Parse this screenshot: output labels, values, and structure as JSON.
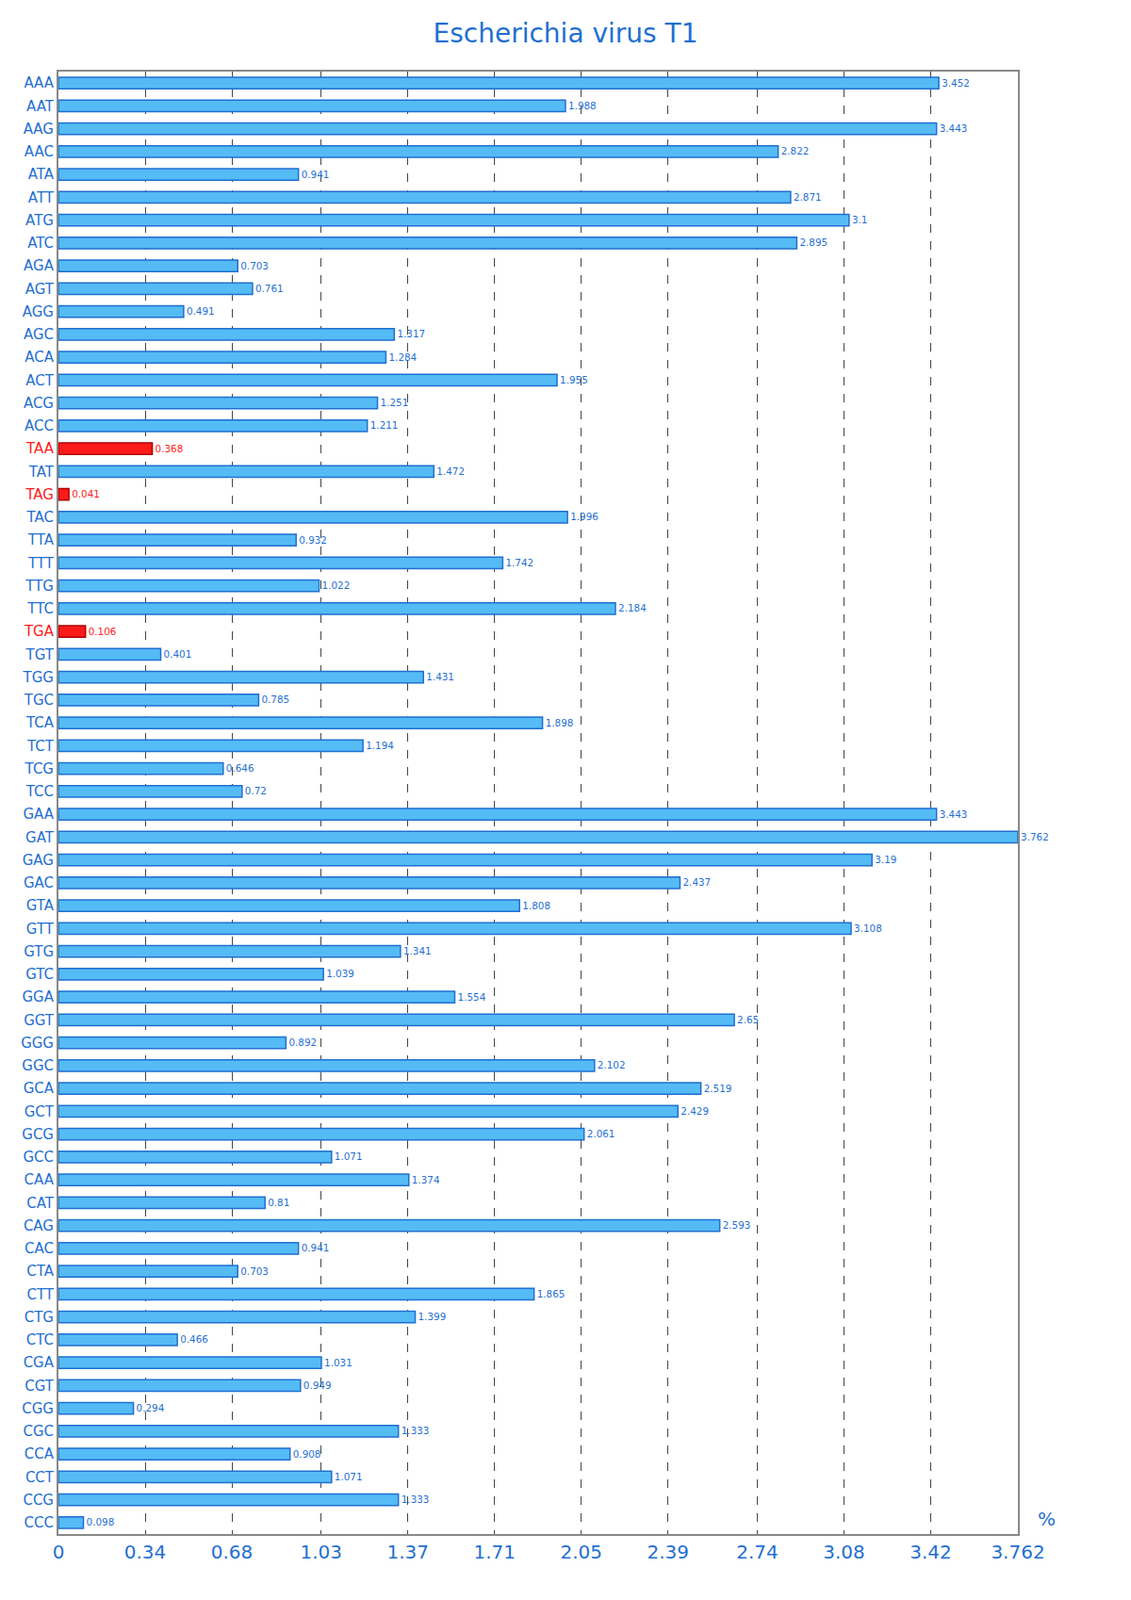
{
  "chart_data": {
    "type": "bar",
    "title": "Escherichia virus T1",
    "orientation": "horizontal",
    "x_label": "%",
    "categories": [
      "AAA",
      "AAT",
      "AAG",
      "AAC",
      "ATA",
      "ATT",
      "ATG",
      "ATC",
      "AGA",
      "AGT",
      "AGG",
      "AGC",
      "ACA",
      "ACT",
      "ACG",
      "ACC",
      "TAA",
      "TAT",
      "TAG",
      "TAC",
      "TTA",
      "TTT",
      "TTG",
      "TTC",
      "TGA",
      "TGT",
      "TGG",
      "TGC",
      "TCA",
      "TCT",
      "TCG",
      "TCC",
      "GAA",
      "GAT",
      "GAG",
      "GAC",
      "GTA",
      "GTT",
      "GTG",
      "GTC",
      "GGA",
      "GGT",
      "GGG",
      "GGC",
      "GCA",
      "GCT",
      "GCG",
      "GCC",
      "CAA",
      "CAT",
      "CAG",
      "CAC",
      "CTA",
      "CTT",
      "CTG",
      "CTC",
      "CGA",
      "CGT",
      "CGG",
      "CGC",
      "CCA",
      "CCT",
      "CCG",
      "CCC"
    ],
    "values": [
      3.452,
      1.988,
      3.443,
      2.822,
      0.941,
      2.871,
      3.1,
      2.895,
      0.703,
      0.761,
      0.491,
      1.317,
      1.284,
      1.955,
      1.251,
      1.211,
      0.368,
      1.472,
      0.041,
      1.996,
      0.932,
      1.742,
      1.022,
      2.184,
      0.106,
      0.401,
      1.431,
      0.785,
      1.898,
      1.194,
      0.646,
      0.72,
      3.443,
      3.762,
      3.19,
      2.437,
      1.808,
      3.108,
      1.341,
      1.039,
      1.554,
      2.65,
      0.892,
      2.102,
      2.519,
      2.429,
      2.061,
      1.071,
      1.374,
      0.81,
      2.593,
      0.941,
      0.703,
      1.865,
      1.399,
      0.466,
      1.031,
      0.949,
      0.294,
      1.333,
      0.908,
      1.071,
      1.333,
      0.098
    ],
    "colors": [
      "#55bbf5",
      "#55bbf5",
      "#55bbf5",
      "#55bbf5",
      "#55bbf5",
      "#55bbf5",
      "#55bbf5",
      "#55bbf5",
      "#55bbf5",
      "#55bbf5",
      "#55bbf5",
      "#55bbf5",
      "#55bbf5",
      "#55bbf5",
      "#55bbf5",
      "#55bbf5",
      "#ff1a1a",
      "#55bbf5",
      "#ff1a1a",
      "#55bbf5",
      "#55bbf5",
      "#55bbf5",
      "#55bbf5",
      "#55bbf5",
      "#ff1a1a",
      "#55bbf5",
      "#55bbf5",
      "#55bbf5",
      "#55bbf5",
      "#55bbf5",
      "#55bbf5",
      "#55bbf5",
      "#55bbf5",
      "#55bbf5",
      "#55bbf5",
      "#55bbf5",
      "#55bbf5",
      "#55bbf5",
      "#55bbf5",
      "#55bbf5",
      "#55bbf5",
      "#55bbf5",
      "#55bbf5",
      "#55bbf5",
      "#55bbf5",
      "#55bbf5",
      "#55bbf5",
      "#55bbf5",
      "#55bbf5",
      "#55bbf5",
      "#55bbf5",
      "#55bbf5",
      "#55bbf5",
      "#55bbf5",
      "#55bbf5",
      "#55bbf5",
      "#55bbf5",
      "#55bbf5",
      "#55bbf5",
      "#55bbf5",
      "#55bbf5",
      "#55bbf5",
      "#55bbf5",
      "#55bbf5"
    ],
    "xlim": [
      0,
      3.762
    ],
    "xticks": [
      0,
      0.34,
      0.68,
      1.03,
      1.37,
      1.71,
      2.05,
      2.39,
      2.74,
      3.08,
      3.42,
      3.762
    ],
    "grid": true,
    "data_labels": true
  }
}
